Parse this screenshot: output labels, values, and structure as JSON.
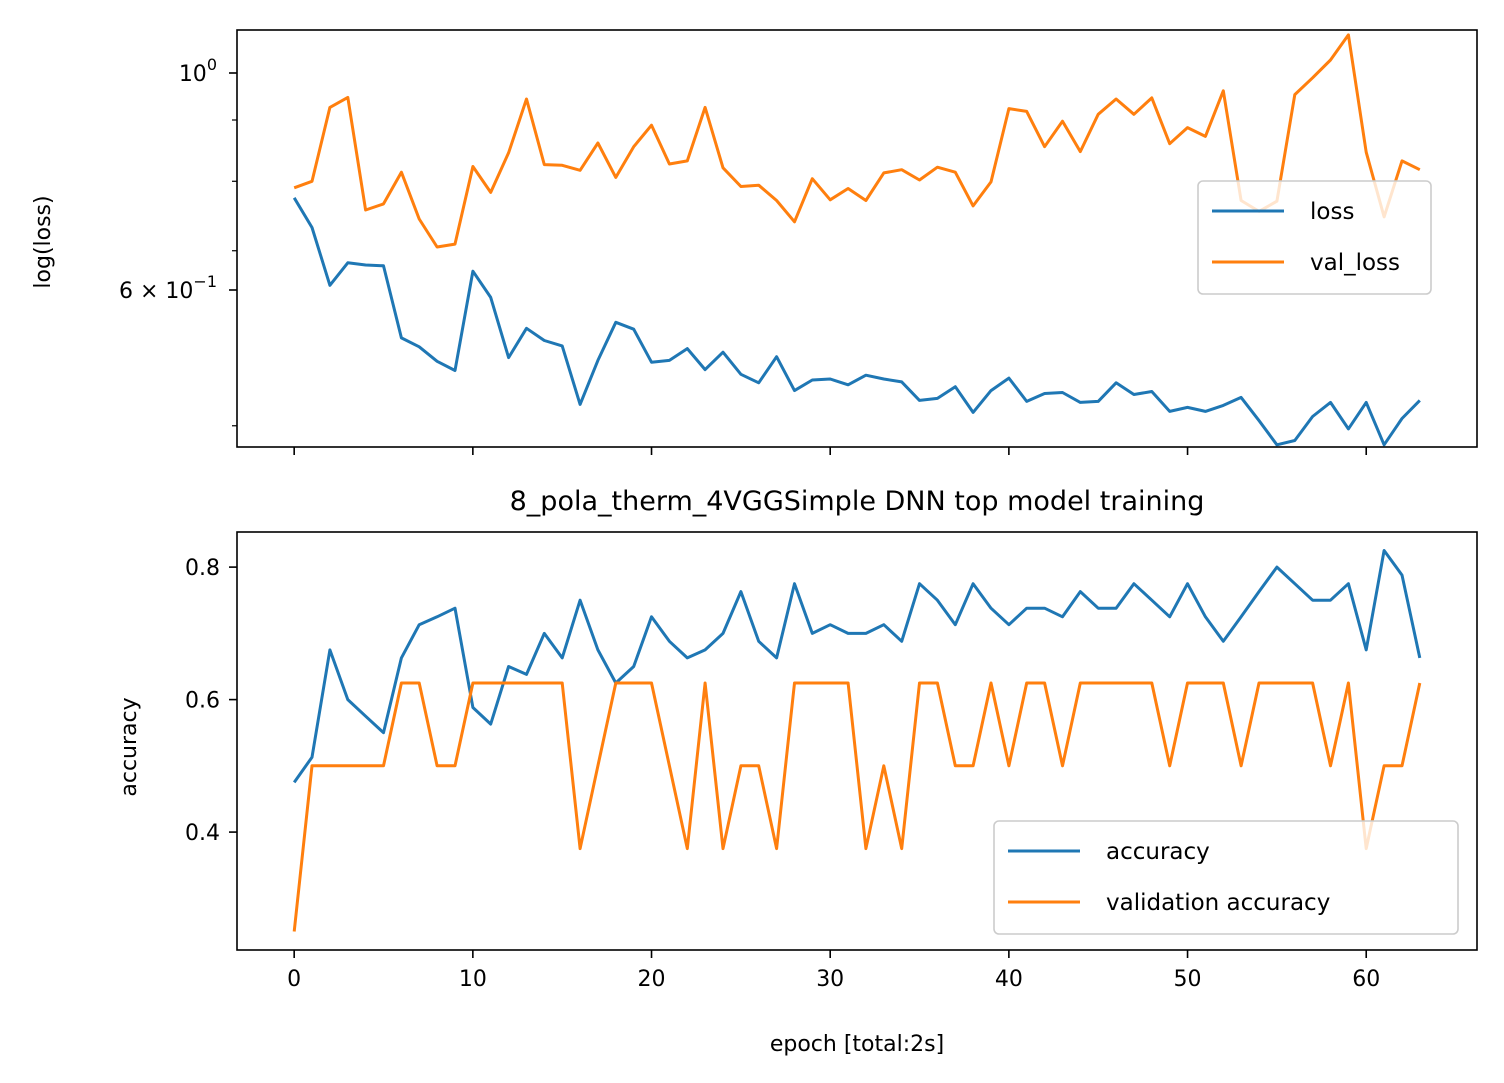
{
  "chart_data": [
    {
      "type": "line",
      "yscale": "log",
      "title": "",
      "xlabel": "",
      "ylabel": "log(loss)",
      "ylim": [
        0.48,
        1.07
      ],
      "xlim": [
        -3.2,
        66.2
      ],
      "xticks": [
        0,
        10,
        20,
        30,
        40,
        50,
        60
      ],
      "yticks": [
        {
          "value": 1.0,
          "base": "10",
          "exp": "0"
        },
        {
          "value": 0.6,
          "base": "6 × 10",
          "exp": "−1"
        }
      ],
      "legend": "center-right",
      "series": [
        {
          "name": "loss",
          "color": "#1f77b4",
          "x": [
            0,
            1,
            2,
            3,
            4,
            5,
            6,
            7,
            8,
            9,
            10,
            11,
            12,
            13,
            14,
            15,
            16,
            17,
            18,
            19,
            20,
            21,
            22,
            23,
            24,
            25,
            26,
            27,
            28,
            29,
            30,
            31,
            32,
            33,
            34,
            35,
            36,
            37,
            38,
            39,
            40,
            41,
            42,
            43,
            44,
            45,
            46,
            47,
            48,
            49,
            50,
            51,
            52,
            53,
            54,
            55,
            56,
            57,
            58,
            59,
            60,
            61,
            62,
            63
          ],
          "values": [
            0.775,
            0.732,
            0.655,
            0.684,
            0.681,
            0.68,
            0.592,
            0.582,
            0.566,
            0.556,
            0.673,
            0.64,
            0.57,
            0.603,
            0.589,
            0.583,
            0.521,
            0.567,
            0.61,
            0.602,
            0.565,
            0.567,
            0.58,
            0.557,
            0.576,
            0.552,
            0.543,
            0.571,
            0.535,
            0.546,
            0.547,
            0.541,
            0.551,
            0.547,
            0.544,
            0.525,
            0.527,
            0.539,
            0.513,
            0.535,
            0.548,
            0.524,
            0.532,
            0.533,
            0.523,
            0.524,
            0.543,
            0.531,
            0.534,
            0.514,
            0.518,
            0.514,
            0.52,
            0.528,
            0.505,
            0.482,
            0.486,
            0.509,
            0.523,
            0.497,
            0.523,
            0.482,
            0.507,
            0.525
          ]
        },
        {
          "name": "val_loss",
          "color": "#ff7f0e",
          "x": [
            0,
            1,
            2,
            3,
            4,
            5,
            6,
            7,
            8,
            9,
            10,
            11,
            12,
            13,
            14,
            15,
            16,
            17,
            18,
            19,
            20,
            21,
            22,
            23,
            24,
            25,
            26,
            27,
            28,
            29,
            30,
            31,
            32,
            33,
            34,
            35,
            36,
            37,
            38,
            39,
            40,
            41,
            42,
            43,
            44,
            45,
            46,
            47,
            48,
            49,
            50,
            51,
            52,
            53,
            54,
            55,
            56,
            57,
            58,
            59,
            60,
            61,
            62,
            63
          ],
          "values": [
            0.79,
            0.8,
            0.922,
            0.94,
            0.757,
            0.766,
            0.814,
            0.744,
            0.705,
            0.709,
            0.823,
            0.783,
            0.845,
            0.937,
            0.826,
            0.825,
            0.817,
            0.861,
            0.806,
            0.855,
            0.891,
            0.827,
            0.832,
            0.922,
            0.821,
            0.792,
            0.794,
            0.771,
            0.74,
            0.804,
            0.772,
            0.789,
            0.771,
            0.813,
            0.818,
            0.802,
            0.822,
            0.814,
            0.763,
            0.799,
            0.92,
            0.915,
            0.855,
            0.898,
            0.847,
            0.91,
            0.937,
            0.91,
            0.939,
            0.86,
            0.887,
            0.872,
            0.952,
            0.771,
            0.755,
            0.77,
            0.945,
            0.976,
            1.01,
            1.06,
            0.846,
            0.747,
            0.832,
            0.818
          ]
        }
      ]
    },
    {
      "type": "line",
      "title": "8_pola_therm_4VGGSimple DNN top model training",
      "xlabel": "epoch [total:2s]",
      "ylabel": "accuracy",
      "ylim": [
        0.222,
        0.853
      ],
      "xlim": [
        -3.2,
        66.2
      ],
      "xticks": [
        0,
        10,
        20,
        30,
        40,
        50,
        60
      ],
      "yticks": [
        0.4,
        0.6,
        0.8
      ],
      "legend": "lower-right",
      "series": [
        {
          "name": "accuracy",
          "color": "#1f77b4",
          "x": [
            0,
            1,
            2,
            3,
            4,
            5,
            6,
            7,
            8,
            9,
            10,
            11,
            12,
            13,
            14,
            15,
            16,
            17,
            18,
            19,
            20,
            21,
            22,
            23,
            24,
            25,
            26,
            27,
            28,
            29,
            30,
            31,
            32,
            33,
            34,
            35,
            36,
            37,
            38,
            39,
            40,
            41,
            42,
            43,
            44,
            45,
            46,
            47,
            48,
            49,
            50,
            51,
            52,
            53,
            54,
            55,
            56,
            57,
            58,
            59,
            60,
            61,
            62,
            63
          ],
          "values": [
            0.475,
            0.513,
            0.675,
            0.6,
            0.575,
            0.55,
            0.663,
            0.713,
            0.725,
            0.738,
            0.588,
            0.563,
            0.65,
            0.638,
            0.7,
            0.663,
            0.75,
            0.675,
            0.625,
            0.65,
            0.725,
            0.688,
            0.663,
            0.675,
            0.7,
            0.763,
            0.688,
            0.663,
            0.775,
            0.7,
            0.713,
            0.7,
            0.7,
            0.713,
            0.688,
            0.775,
            0.75,
            0.713,
            0.775,
            0.738,
            0.713,
            0.738,
            0.738,
            0.725,
            0.763,
            0.738,
            0.738,
            0.775,
            0.75,
            0.725,
            0.775,
            0.725,
            0.688,
            0.725,
            0.763,
            0.8,
            0.775,
            0.75,
            0.75,
            0.775,
            0.675,
            0.825,
            0.788,
            0.663
          ]
        },
        {
          "name": "validation accuracy",
          "color": "#ff7f0e",
          "x": [
            0,
            1,
            2,
            3,
            4,
            5,
            6,
            7,
            8,
            9,
            10,
            11,
            12,
            13,
            14,
            15,
            16,
            17,
            18,
            19,
            20,
            21,
            22,
            23,
            24,
            25,
            26,
            27,
            28,
            29,
            30,
            31,
            32,
            33,
            34,
            35,
            36,
            37,
            38,
            39,
            40,
            41,
            42,
            43,
            44,
            45,
            46,
            47,
            48,
            49,
            50,
            51,
            52,
            53,
            54,
            55,
            56,
            57,
            58,
            59,
            60,
            61,
            62,
            63
          ],
          "values": [
            0.25,
            0.5,
            0.5,
            0.5,
            0.5,
            0.5,
            0.625,
            0.625,
            0.5,
            0.5,
            0.625,
            0.625,
            0.625,
            0.625,
            0.625,
            0.625,
            0.375,
            0.5,
            0.625,
            0.625,
            0.625,
            0.5,
            0.375,
            0.625,
            0.375,
            0.5,
            0.5,
            0.375,
            0.625,
            0.625,
            0.625,
            0.625,
            0.375,
            0.5,
            0.375,
            0.625,
            0.625,
            0.5,
            0.5,
            0.625,
            0.5,
            0.625,
            0.625,
            0.5,
            0.625,
            0.625,
            0.625,
            0.625,
            0.625,
            0.5,
            0.625,
            0.625,
            0.625,
            0.5,
            0.625,
            0.625,
            0.625,
            0.625,
            0.5,
            0.625,
            0.375,
            0.5,
            0.5,
            0.625
          ]
        }
      ]
    }
  ]
}
